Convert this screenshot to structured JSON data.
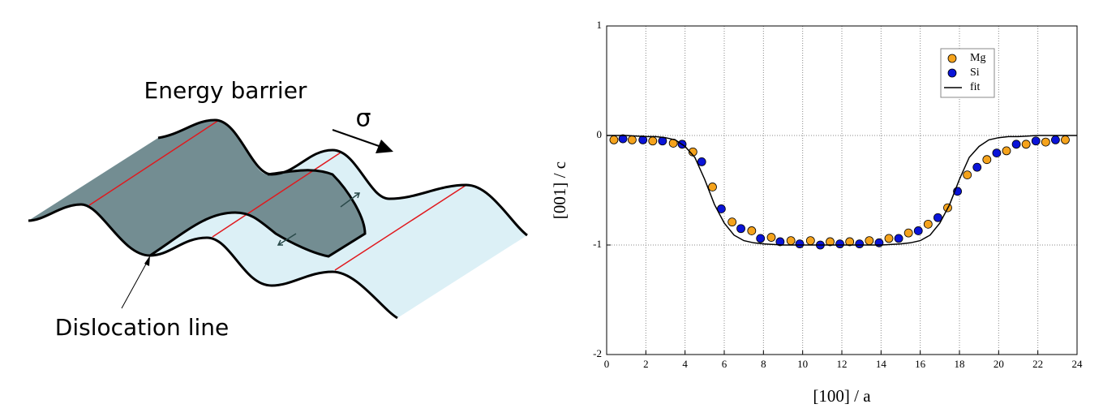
{
  "diagram": {
    "title": "Energy barrier",
    "stress": "σ",
    "line_label": "Dislocation line"
  },
  "chart_data": {
    "type": "scatter",
    "x_label": "[100] / a",
    "y_label": "[001] / c",
    "xlim": [
      0,
      24
    ],
    "ylim": [
      -2,
      1
    ],
    "xticks": [
      0,
      2,
      4,
      6,
      8,
      10,
      12,
      14,
      16,
      18,
      20,
      22,
      24
    ],
    "yticks": [
      -2,
      -1,
      0,
      1
    ],
    "grid": true,
    "legend": "upper right",
    "series": [
      {
        "name": "Mg",
        "color": "#f5a31c",
        "type": "scatter",
        "x": [
          0.37,
          1.3,
          2.35,
          3.4,
          4.4,
          5.4,
          6.4,
          7.4,
          8.4,
          9.4,
          10.4,
          11.4,
          12.4,
          13.4,
          14.4,
          15.4,
          16.4,
          17.4,
          18.4,
          19.4,
          20.4,
          21.4,
          22.4,
          23.4
        ],
        "values": [
          -0.04,
          -0.04,
          -0.05,
          -0.07,
          -0.15,
          -0.47,
          -0.79,
          -0.87,
          -0.93,
          -0.96,
          -0.96,
          -0.97,
          -0.97,
          -0.96,
          -0.94,
          -0.89,
          -0.81,
          -0.66,
          -0.36,
          -0.22,
          -0.14,
          -0.08,
          -0.06,
          -0.04
        ]
      },
      {
        "name": "Si",
        "color": "#0a14d8",
        "type": "scatter",
        "x": [
          0.83,
          1.85,
          2.85,
          3.85,
          4.85,
          5.85,
          6.85,
          7.85,
          8.85,
          9.85,
          10.9,
          11.9,
          12.9,
          13.9,
          14.9,
          15.9,
          16.9,
          17.9,
          18.9,
          19.9,
          20.9,
          21.9,
          22.9
        ],
        "values": [
          -0.03,
          -0.04,
          -0.05,
          -0.08,
          -0.24,
          -0.67,
          -0.85,
          -0.94,
          -0.97,
          -0.99,
          -1.0,
          -0.99,
          -0.99,
          -0.98,
          -0.94,
          -0.87,
          -0.75,
          -0.51,
          -0.29,
          -0.16,
          -0.08,
          -0.05,
          -0.04
        ]
      },
      {
        "name": "fit",
        "color": "#000000",
        "type": "line",
        "x": [
          0,
          1,
          2,
          2.5,
          3,
          3.5,
          4,
          4.5,
          5,
          5.5,
          6,
          6.5,
          7,
          7.5,
          8,
          9,
          10,
          11,
          12,
          13,
          14,
          15,
          15.5,
          16,
          16.5,
          17,
          17.5,
          18,
          18.5,
          19,
          19.5,
          20,
          20.5,
          21,
          22,
          23,
          24
        ],
        "values": [
          0,
          0,
          -0.01,
          -0.01,
          -0.02,
          -0.04,
          -0.1,
          -0.2,
          -0.4,
          -0.63,
          -0.8,
          -0.91,
          -0.96,
          -0.98,
          -0.99,
          -1,
          -1,
          -1,
          -1,
          -1,
          -1,
          -0.99,
          -0.98,
          -0.96,
          -0.91,
          -0.8,
          -0.63,
          -0.4,
          -0.2,
          -0.1,
          -0.04,
          -0.02,
          -0.01,
          -0.01,
          0,
          0,
          0
        ]
      }
    ]
  }
}
